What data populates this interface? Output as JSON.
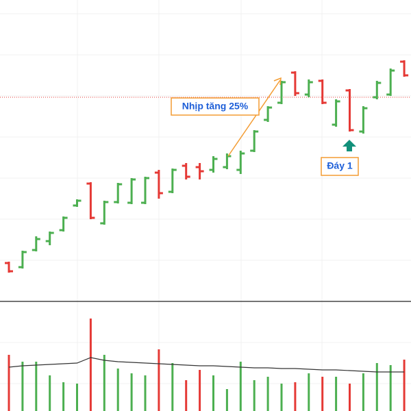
{
  "chart_data": {
    "type": "ohlc",
    "open": [
      56,
      50,
      75,
      88,
      104,
      140,
      172,
      114,
      145,
      144,
      144,
      188,
      160,
      198,
      196,
      192,
      196,
      192,
      220,
      265,
      290,
      334,
      302,
      322,
      258,
      308,
      248,
      298,
      302,
      350
    ],
    "high": [
      58,
      74,
      95,
      102,
      124,
      149,
      174,
      147,
      173,
      180,
      182,
      192,
      194,
      202,
      202,
      212,
      216,
      220,
      250,
      285,
      322,
      336,
      324,
      324,
      295,
      310,
      285,
      322,
      340,
      352
    ],
    "low": [
      42,
      48,
      73,
      82,
      102,
      138,
      120,
      112,
      143,
      142,
      142,
      150,
      158,
      178,
      178,
      188,
      193,
      186,
      218,
      262,
      288,
      300,
      298,
      288,
      255,
      248,
      245,
      295,
      300,
      328
    ],
    "close": [
      44,
      72,
      91,
      100,
      122,
      147,
      122,
      145,
      171,
      178,
      180,
      158,
      192,
      182,
      190,
      208,
      212,
      216,
      248,
      283,
      320,
      304,
      320,
      290,
      292,
      250,
      282,
      319,
      337,
      330
    ],
    "volume": [
      82,
      72,
      72,
      52,
      42,
      40,
      135,
      82,
      62,
      55,
      52,
      90,
      70,
      45,
      60,
      52,
      32,
      72,
      45,
      50,
      40,
      42,
      55,
      50,
      50,
      40,
      55,
      70,
      67,
      75
    ],
    "volume_ma": [
      64,
      66,
      67,
      68,
      69,
      70,
      78,
      74,
      72,
      71,
      70,
      69,
      68,
      67,
      66,
      66,
      65,
      64,
      63,
      63,
      62,
      62,
      61,
      60,
      60,
      59,
      58,
      57,
      57,
      57
    ],
    "ylim": [
      0,
      440
    ],
    "volume_lim": [
      0,
      160
    ],
    "reference_line": 298,
    "up_color": "#4caf50",
    "down_color": "#e53935",
    "ma_color": "#333333",
    "annotations": [
      "Nhịp tăng 25%",
      "Đáy 1"
    ]
  }
}
